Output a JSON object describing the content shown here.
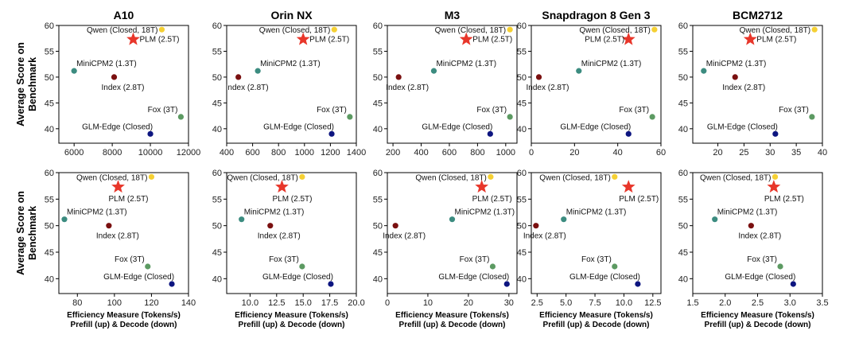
{
  "figure": {
    "ylabel_lines": [
      "Average Score on",
      "Benchmark"
    ],
    "xlabel_lines": [
      "Efficiency Measure (Tokens/s)",
      "Prefill (up) & Decode (down)"
    ]
  },
  "colors": {
    "Qwen (Closed, 18T)": "#f5d033",
    "PLM (2.5T)": "#e8362a",
    "MiniCPM2 (1.3T)": "#3c8c80",
    "Index (2.8T)": "#7a1010",
    "Fox (3T)": "#5c9a62",
    "GLM-Edge (Closed)": "#0d1580"
  },
  "chart_data": [
    {
      "type": "scatter",
      "title": "A10",
      "row": "prefill",
      "xlim": [
        5200,
        12000
      ],
      "xticks": [
        6000,
        8000,
        10000,
        12000
      ],
      "xtick_labels": [
        "6000",
        "8000",
        "10000",
        "12000"
      ],
      "ylim": [
        37.2,
        60
      ],
      "yticks": [
        40,
        45,
        50,
        55,
        60
      ],
      "points": [
        {
          "name": "Qwen (Closed, 18T)",
          "x": 10600,
          "y": 59.2
        },
        {
          "name": "PLM (2.5T)",
          "x": 9100,
          "y": 57.3
        },
        {
          "name": "MiniCPM2 (1.3T)",
          "x": 6000,
          "y": 51.2
        },
        {
          "name": "Index (2.8T)",
          "x": 8100,
          "y": 50.0
        },
        {
          "name": "Fox (3T)",
          "x": 11600,
          "y": 42.3
        },
        {
          "name": "GLM-Edge (Closed)",
          "x": 10000,
          "y": 39.0
        }
      ]
    },
    {
      "type": "scatter",
      "title": "Orin NX",
      "row": "prefill",
      "xlim": [
        400,
        1400
      ],
      "xticks": [
        400,
        600,
        800,
        1000,
        1200,
        1400
      ],
      "xtick_labels": [
        "400",
        "600",
        "800",
        "1000",
        "1200",
        "1400"
      ],
      "ylim": [
        37.2,
        60
      ],
      "yticks": [
        40,
        45,
        50,
        55,
        60
      ],
      "points": [
        {
          "name": "Qwen (Closed, 18T)",
          "x": 1230,
          "y": 59.2
        },
        {
          "name": "PLM (2.5T)",
          "x": 990,
          "y": 57.3
        },
        {
          "name": "MiniCPM2 (1.3T)",
          "x": 640,
          "y": 51.2
        },
        {
          "name": "Index (2.8T)",
          "x": 490,
          "y": 50.0
        },
        {
          "name": "Fox (3T)",
          "x": 1350,
          "y": 42.3
        },
        {
          "name": "GLM-Edge (Closed)",
          "x": 1210,
          "y": 39.0
        }
      ]
    },
    {
      "type": "scatter",
      "title": "M3",
      "row": "prefill",
      "xlim": [
        160,
        1080
      ],
      "xticks": [
        200,
        400,
        600,
        800,
        1000
      ],
      "xtick_labels": [
        "200",
        "400",
        "600",
        "800",
        "1000"
      ],
      "ylim": [
        37.2,
        60
      ],
      "yticks": [
        40,
        45,
        50,
        55,
        60
      ],
      "points": [
        {
          "name": "Qwen (Closed, 18T)",
          "x": 1030,
          "y": 59.2
        },
        {
          "name": "PLM (2.5T)",
          "x": 720,
          "y": 57.3
        },
        {
          "name": "MiniCPM2 (1.3T)",
          "x": 490,
          "y": 51.2
        },
        {
          "name": "Index (2.8T)",
          "x": 240,
          "y": 50.0
        },
        {
          "name": "Fox (3T)",
          "x": 1030,
          "y": 42.3
        },
        {
          "name": "GLM-Edge (Closed)",
          "x": 890,
          "y": 39.0
        }
      ]
    },
    {
      "type": "scatter",
      "title": "Snapdragon 8 Gen 3",
      "row": "prefill",
      "xlim": [
        0,
        60
      ],
      "xticks": [
        0,
        20,
        40,
        60
      ],
      "xtick_labels": [
        "0",
        "20",
        "40",
        "60"
      ],
      "ylim": [
        37.2,
        60
      ],
      "yticks": [
        40,
        45,
        50,
        55,
        60
      ],
      "points": [
        {
          "name": "Qwen (Closed, 18T)",
          "x": 57,
          "y": 59.2
        },
        {
          "name": "PLM (2.5T)",
          "x": 45,
          "y": 57.3
        },
        {
          "name": "MiniCPM2 (1.3T)",
          "x": 22,
          "y": 51.2
        },
        {
          "name": "Index (2.8T)",
          "x": 3.5,
          "y": 50.0
        },
        {
          "name": "Fox (3T)",
          "x": 56,
          "y": 42.3
        },
        {
          "name": "GLM-Edge (Closed)",
          "x": 45,
          "y": 39.0
        }
      ]
    },
    {
      "type": "scatter",
      "title": "BCM2712",
      "row": "prefill",
      "xlim": [
        15.2,
        40
      ],
      "xticks": [
        20,
        25,
        30,
        35,
        40
      ],
      "xtick_labels": [
        "20",
        "25",
        "30",
        "35",
        "40"
      ],
      "ylim": [
        37.2,
        60
      ],
      "yticks": [
        40,
        45,
        50,
        55,
        60
      ],
      "points": [
        {
          "name": "Qwen (Closed, 18T)",
          "x": 38.5,
          "y": 59.2
        },
        {
          "name": "PLM (2.5T)",
          "x": 26.2,
          "y": 57.3
        },
        {
          "name": "MiniCPM2 (1.3T)",
          "x": 17.3,
          "y": 51.2
        },
        {
          "name": "Index (2.8T)",
          "x": 23.3,
          "y": 50.0
        },
        {
          "name": "Fox (3T)",
          "x": 38,
          "y": 42.3
        },
        {
          "name": "GLM-Edge (Closed)",
          "x": 31,
          "y": 39.0
        }
      ]
    },
    {
      "type": "scatter",
      "title": "",
      "row": "decode",
      "xlim": [
        70,
        140
      ],
      "xticks": [
        80,
        100,
        120,
        140
      ],
      "xtick_labels": [
        "80",
        "100",
        "120",
        "140"
      ],
      "ylim": [
        37.2,
        60
      ],
      "yticks": [
        40,
        45,
        50,
        55,
        60
      ],
      "points": [
        {
          "name": "Qwen (Closed, 18T)",
          "x": 120,
          "y": 59.2
        },
        {
          "name": "PLM (2.5T)",
          "x": 102,
          "y": 57.3
        },
        {
          "name": "MiniCPM2 (1.3T)",
          "x": 73,
          "y": 51.2
        },
        {
          "name": "Index (2.8T)",
          "x": 97,
          "y": 50.0
        },
        {
          "name": "Fox (3T)",
          "x": 118,
          "y": 42.3
        },
        {
          "name": "GLM-Edge (Closed)",
          "x": 131,
          "y": 39.0
        }
      ]
    },
    {
      "type": "scatter",
      "title": "",
      "row": "decode",
      "xlim": [
        7.8,
        20
      ],
      "xticks": [
        10.0,
        12.5,
        15.0,
        17.5,
        20.0
      ],
      "xtick_labels": [
        "10.0",
        "12.5",
        "15.0",
        "17.5",
        "20.0"
      ],
      "ylim": [
        37.2,
        60
      ],
      "yticks": [
        40,
        45,
        50,
        55,
        60
      ],
      "points": [
        {
          "name": "Qwen (Closed, 18T)",
          "x": 14.9,
          "y": 59.2
        },
        {
          "name": "PLM (2.5T)",
          "x": 13.0,
          "y": 57.3
        },
        {
          "name": "MiniCPM2 (1.3T)",
          "x": 9.2,
          "y": 51.2
        },
        {
          "name": "Index (2.8T)",
          "x": 11.9,
          "y": 50.0
        },
        {
          "name": "Fox (3T)",
          "x": 14.9,
          "y": 42.3
        },
        {
          "name": "GLM-Edge (Closed)",
          "x": 17.6,
          "y": 39.0
        }
      ]
    },
    {
      "type": "scatter",
      "title": "",
      "row": "decode",
      "xlim": [
        0,
        32
      ],
      "xticks": [
        0,
        10,
        20,
        30
      ],
      "xtick_labels": [
        "0",
        "10",
        "20",
        "30"
      ],
      "ylim": [
        37.2,
        60
      ],
      "yticks": [
        40,
        45,
        50,
        55,
        60
      ],
      "points": [
        {
          "name": "Qwen (Closed, 18T)",
          "x": 25.5,
          "y": 59.2
        },
        {
          "name": "PLM (2.5T)",
          "x": 23.3,
          "y": 57.3
        },
        {
          "name": "MiniCPM2 (1.3T)",
          "x": 16.0,
          "y": 51.2
        },
        {
          "name": "Index (2.8T)",
          "x": 2.0,
          "y": 50.0
        },
        {
          "name": "Fox (3T)",
          "x": 26.0,
          "y": 42.3
        },
        {
          "name": "GLM-Edge (Closed)",
          "x": 29.5,
          "y": 39.0
        }
      ]
    },
    {
      "type": "scatter",
      "title": "",
      "row": "decode",
      "xlim": [
        2.0,
        13.2
      ],
      "xticks": [
        2.5,
        5.0,
        7.5,
        10.0,
        12.5
      ],
      "xtick_labels": [
        "2.5",
        "5.0",
        "7.5",
        "10.0",
        "12.5"
      ],
      "ylim": [
        37.2,
        60
      ],
      "yticks": [
        40,
        45,
        50,
        55,
        60
      ],
      "points": [
        {
          "name": "Qwen (Closed, 18T)",
          "x": 9.2,
          "y": 59.2
        },
        {
          "name": "PLM (2.5T)",
          "x": 10.4,
          "y": 57.3
        },
        {
          "name": "MiniCPM2 (1.3T)",
          "x": 4.8,
          "y": 51.2
        },
        {
          "name": "Index (2.8T)",
          "x": 2.4,
          "y": 50.0
        },
        {
          "name": "Fox (3T)",
          "x": 9.2,
          "y": 42.3
        },
        {
          "name": "GLM-Edge (Closed)",
          "x": 11.2,
          "y": 39.0
        }
      ]
    },
    {
      "type": "scatter",
      "title": "",
      "row": "decode",
      "xlim": [
        1.5,
        3.5
      ],
      "xticks": [
        1.5,
        2.0,
        2.5,
        3.0,
        3.5
      ],
      "xtick_labels": [
        "1.5",
        "2.0",
        "2.5",
        "3.0",
        "3.5"
      ],
      "ylim": [
        37.2,
        60
      ],
      "yticks": [
        40,
        45,
        50,
        55,
        60
      ],
      "points": [
        {
          "name": "Qwen (Closed, 18T)",
          "x": 2.77,
          "y": 59.2
        },
        {
          "name": "PLM (2.5T)",
          "x": 2.75,
          "y": 57.3
        },
        {
          "name": "MiniCPM2 (1.3T)",
          "x": 1.84,
          "y": 51.2
        },
        {
          "name": "Index (2.8T)",
          "x": 2.4,
          "y": 50.0
        },
        {
          "name": "Fox (3T)",
          "x": 2.85,
          "y": 42.3
        },
        {
          "name": "GLM-Edge (Closed)",
          "x": 3.05,
          "y": 39.0
        }
      ]
    }
  ]
}
